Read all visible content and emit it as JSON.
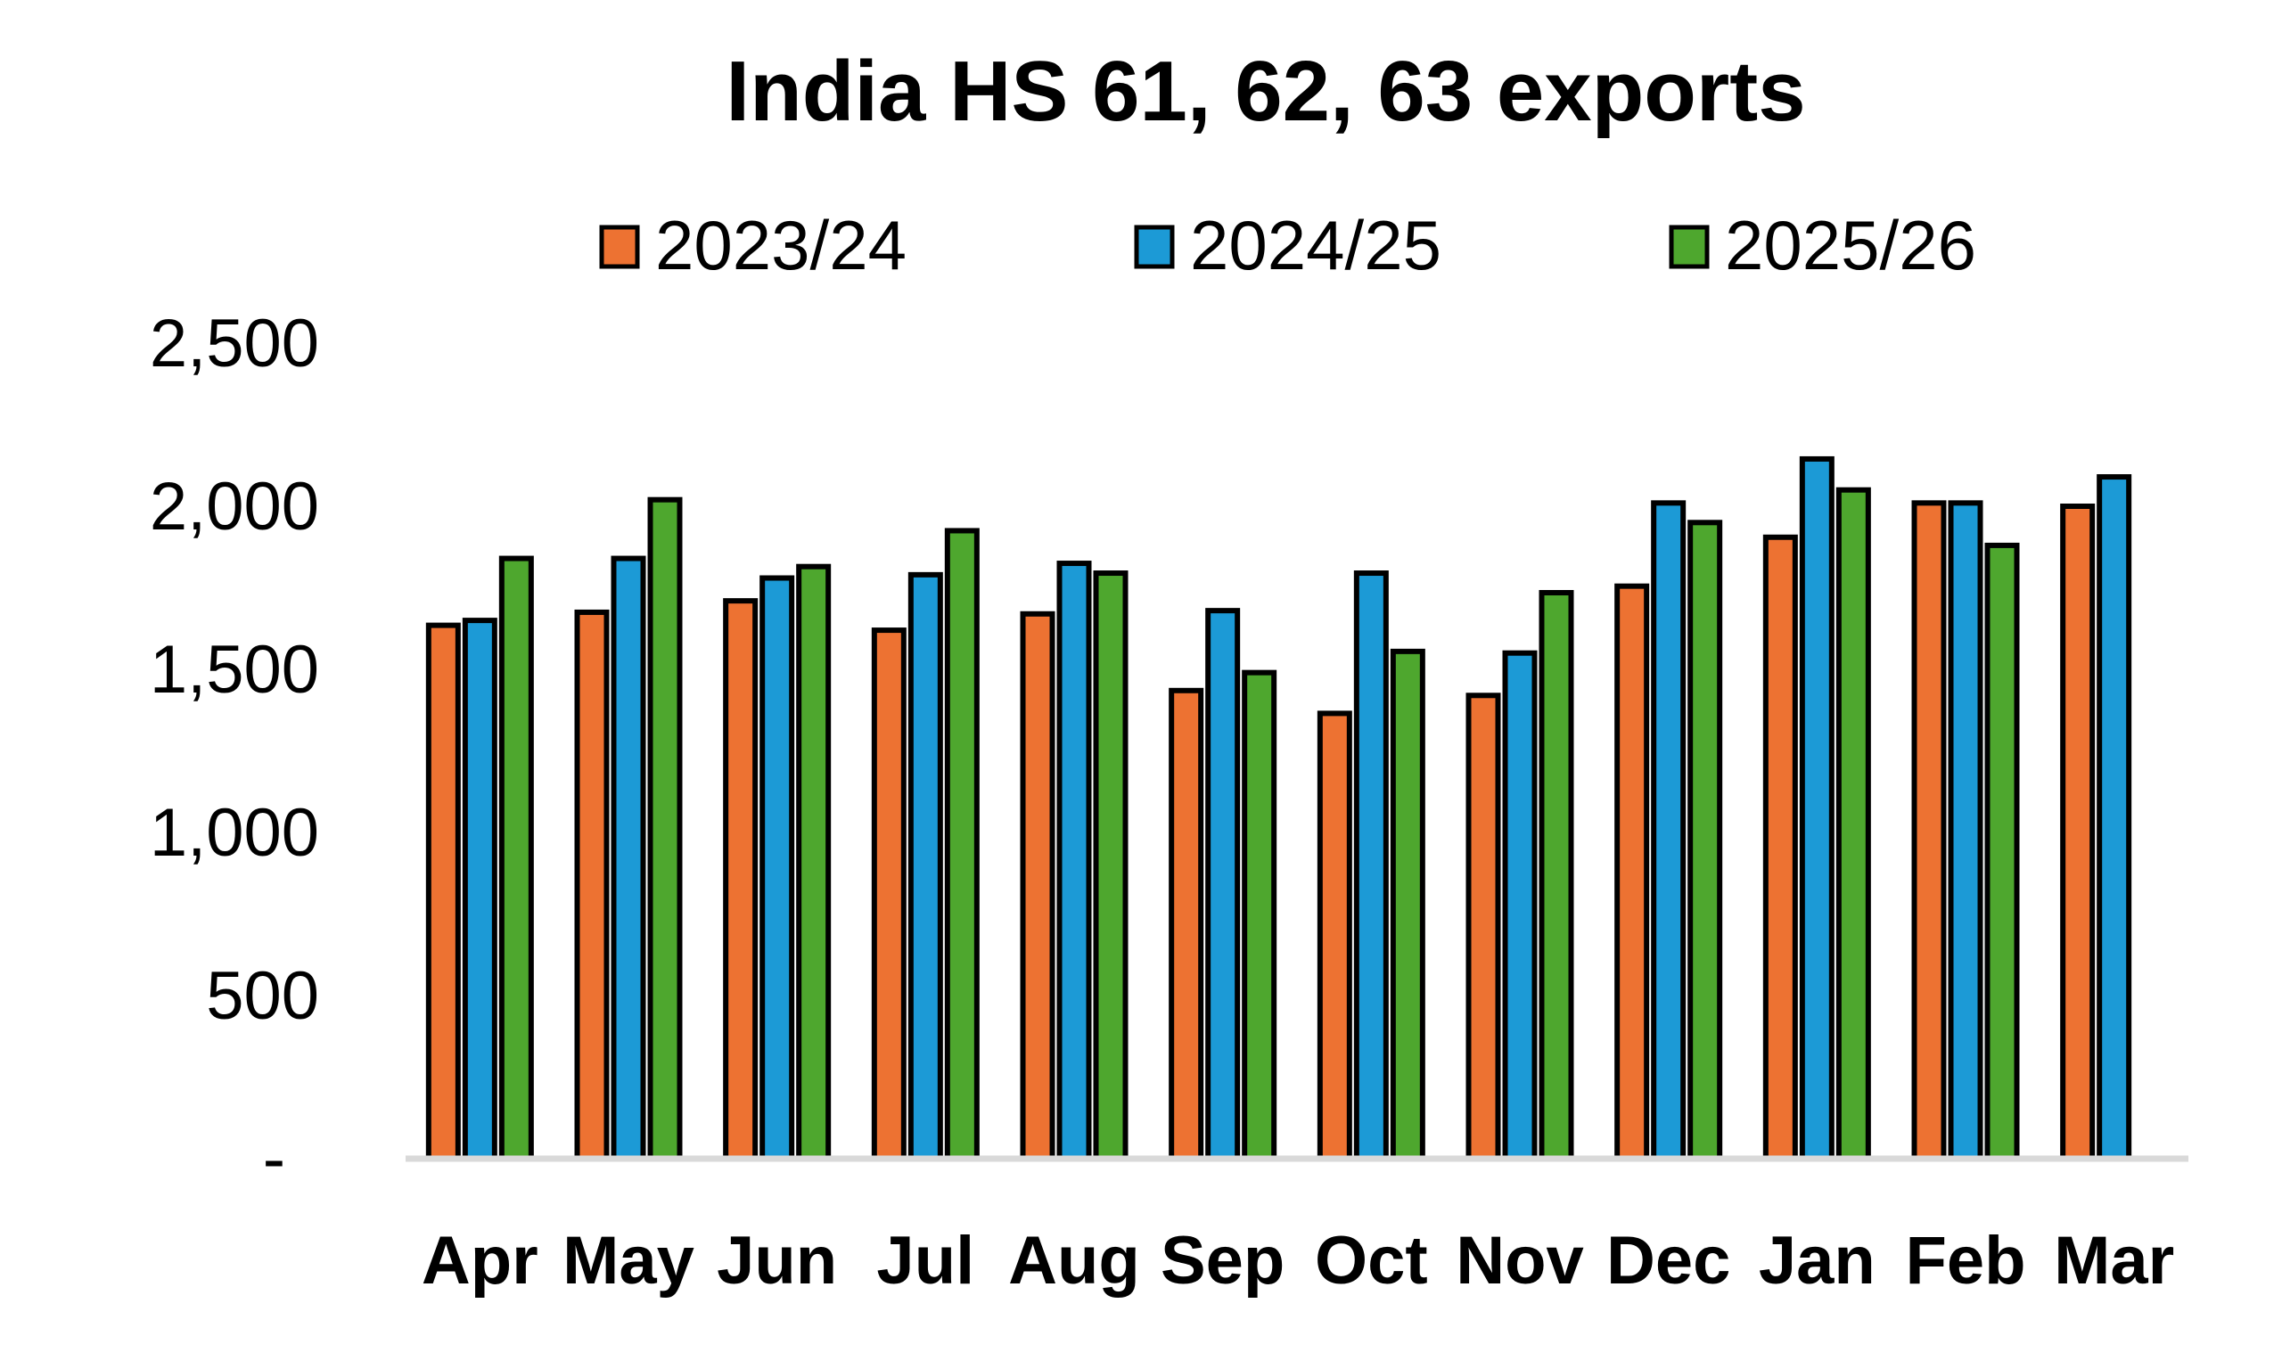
{
  "chart_data": {
    "type": "bar",
    "title": "India HS 61, 62, 63 exports",
    "xlabel": "",
    "ylabel": "",
    "ylim": [
      0,
      2500
    ],
    "yticks": [
      0,
      500,
      1000,
      1500,
      2000,
      2500
    ],
    "ytick_labels": [
      "-",
      "500",
      "1,000",
      "1,500",
      "2,000",
      "2,500"
    ],
    "grid": false,
    "legend_position": "top",
    "categories": [
      "Apr",
      "May",
      "Jun",
      "Jul",
      "Aug",
      "Sep",
      "Oct",
      "Nov",
      "Dec",
      "Jan",
      "Feb",
      "Mar"
    ],
    "series": [
      {
        "name": "2023/24",
        "color": "#ED7232",
        "values": [
          1635,
          1675,
          1710,
          1620,
          1670,
          1435,
          1365,
          1420,
          1755,
          1905,
          2010,
          2000
        ]
      },
      {
        "name": "2024/25",
        "color": "#1C9AD6",
        "values": [
          1650,
          1840,
          1780,
          1790,
          1825,
          1680,
          1795,
          1550,
          2010,
          2145,
          2010,
          2090
        ]
      },
      {
        "name": "2025/26",
        "color": "#4EA72E",
        "values": [
          1840,
          2020,
          1815,
          1925,
          1795,
          1490,
          1555,
          1735,
          1950,
          2050,
          1880,
          null
        ]
      }
    ]
  }
}
